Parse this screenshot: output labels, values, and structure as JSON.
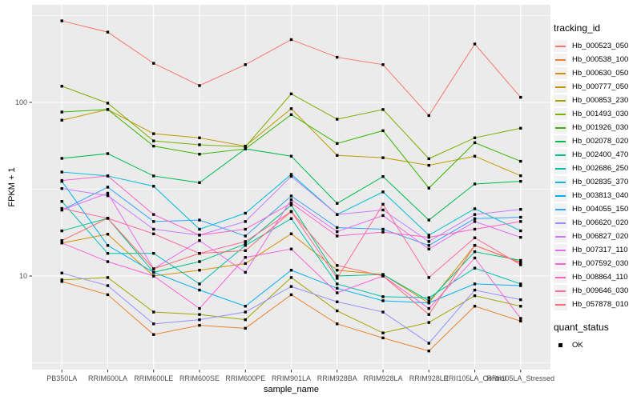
{
  "chart_data": {
    "type": "line",
    "title": "",
    "xlabel": "sample_name",
    "ylabel": "FPKM + 1",
    "y_scale": "log10",
    "grid": true,
    "legend_position": "right",
    "panel_bg": "#EBEBEB",
    "grid_color": "#FFFFFF",
    "tick_color": "#333333",
    "tick_label_color": "#4D4D4D",
    "point_shape": "square",
    "point_color": "#000000",
    "y_ticks": [
      {
        "label": "100",
        "value": 100
      },
      {
        "label": "10",
        "value": 10
      }
    ],
    "y_minor_ticks": [
      316,
      31.6,
      3.16
    ],
    "ylim": [
      2.8,
      380
    ],
    "categories": [
      "PB350LA",
      "RRIM600LA",
      "RRIM600LE",
      "RRIM600SE",
      "RRIM600PE",
      "RRIM901LA",
      "RRIM928BA",
      "RRIM928LA",
      "RRIM928LE",
      "RRII105LA_Control",
      "RRII105LA_Stressed"
    ],
    "legend": {
      "series_title": "tracking_id",
      "point_title": "quant_status",
      "point_label": "OK"
    },
    "series": [
      {
        "name": "Hb_000523_050",
        "color": "#F8766D",
        "values": [
          295,
          254,
          168,
          125,
          165,
          230,
          182,
          165,
          84,
          217,
          107
        ]
      },
      {
        "name": "Hb_000538_100",
        "color": "#EA8331",
        "values": [
          9.3,
          7.8,
          4.6,
          5.2,
          5.0,
          7.8,
          5.3,
          4.4,
          3.7,
          6.7,
          5.5
        ]
      },
      {
        "name": "Hb_000630_050",
        "color": "#D89000",
        "values": [
          15.5,
          17.4,
          10.0,
          10.8,
          11.8,
          17.5,
          10.8,
          10.2,
          7.0,
          15.0,
          12.0
        ]
      },
      {
        "name": "Hb_000777_050",
        "color": "#C09B00",
        "values": [
          79,
          91,
          66,
          62.5,
          56,
          92,
          49.5,
          48,
          43.4,
          49,
          37.8
        ]
      },
      {
        "name": "Hb_000853_230",
        "color": "#A3A500",
        "values": [
          9.5,
          9.8,
          6.2,
          6.0,
          5.6,
          9.8,
          6.3,
          4.7,
          5.4,
          7.7,
          6.7
        ]
      },
      {
        "name": "Hb_001493_030",
        "color": "#7CAE00",
        "values": [
          124,
          99,
          60,
          57,
          55.5,
          112,
          80,
          91,
          47.4,
          62.5,
          71
        ]
      },
      {
        "name": "Hb_001926_030",
        "color": "#39B600",
        "values": [
          88,
          91,
          56,
          50.3,
          54,
          85,
          58,
          68.7,
          32.1,
          58.6,
          45.8
        ]
      },
      {
        "name": "Hb_002078_020",
        "color": "#00BB4E",
        "values": [
          47.6,
          50.7,
          37.7,
          34.5,
          54,
          49,
          26.2,
          37.4,
          21.0,
          33.9,
          35.1
        ]
      },
      {
        "name": "Hb_002400_470",
        "color": "#00C087",
        "values": [
          18.2,
          21.5,
          10.5,
          12.1,
          15.3,
          25.6,
          10.0,
          10.2,
          7.2,
          13.8,
          12.3
        ]
      },
      {
        "name": "Hb_002686_250",
        "color": "#00C0AF",
        "values": [
          26.9,
          13.5,
          13.5,
          9.0,
          15.0,
          21.4,
          9.0,
          7.6,
          7.5,
          11.1,
          9.0
        ]
      },
      {
        "name": "Hb_002835_370",
        "color": "#00BCD8",
        "values": [
          39.7,
          37.7,
          32.9,
          18.6,
          23.0,
          38.5,
          22.6,
          30.5,
          17.2,
          24.4,
          18.2
        ]
      },
      {
        "name": "Hb_003813_040",
        "color": "#00B0F6",
        "values": [
          35.1,
          15.0,
          10.5,
          8.3,
          6.7,
          10.8,
          8.5,
          7.2,
          7.0,
          9.0,
          8.8
        ]
      },
      {
        "name": "Hb_004055_150",
        "color": "#35A2FF",
        "values": [
          24,
          32.5,
          20.6,
          21.0,
          17.0,
          28.9,
          19,
          18.6,
          15.0,
          21.4,
          21.8
        ]
      },
      {
        "name": "Hb_006620_020",
        "color": "#9590FF",
        "values": [
          10.4,
          8.8,
          5.3,
          5.6,
          6.2,
          8.7,
          7.1,
          6.2,
          4.1,
          8.3,
          7.3
        ]
      },
      {
        "name": "Hb_006827_020",
        "color": "#C77CFF",
        "values": [
          31.9,
          29,
          18.6,
          17.2,
          20.6,
          37.5,
          22.6,
          24,
          15.8,
          22.6,
          24.2
        ]
      },
      {
        "name": "Hb_007317_110",
        "color": "#E76BF3",
        "values": [
          24,
          30,
          11,
          16,
          10.5,
          27.5,
          18,
          22.3,
          14.3,
          20.6,
          16.7
        ]
      },
      {
        "name": "Hb_007592_030",
        "color": "#FA62DB",
        "values": [
          15.5,
          12.1,
          10,
          6.5,
          12.8,
          14.3,
          8.0,
          10,
          6.5,
          12.7,
          5.7
        ]
      },
      {
        "name": "Hb_008864_110",
        "color": "#FF61C9",
        "values": [
          35.5,
          37.7,
          22.6,
          17.2,
          18.6,
          26.3,
          17,
          17.9,
          16.7,
          18.6,
          20.6
        ]
      },
      {
        "name": "Hb_009646_030",
        "color": "#FF6A98",
        "values": [
          24.5,
          21.5,
          17.5,
          13.5,
          15.8,
          23.5,
          9.7,
          25.9,
          9.8,
          16.6,
          11.6
        ]
      },
      {
        "name": "Hb_057878_010",
        "color": "#FF6C6F",
        "values": [
          16,
          21.5,
          11,
          13.5,
          14,
          23.5,
          11.5,
          10,
          6.0,
          15.0,
          11.9
        ]
      }
    ]
  }
}
